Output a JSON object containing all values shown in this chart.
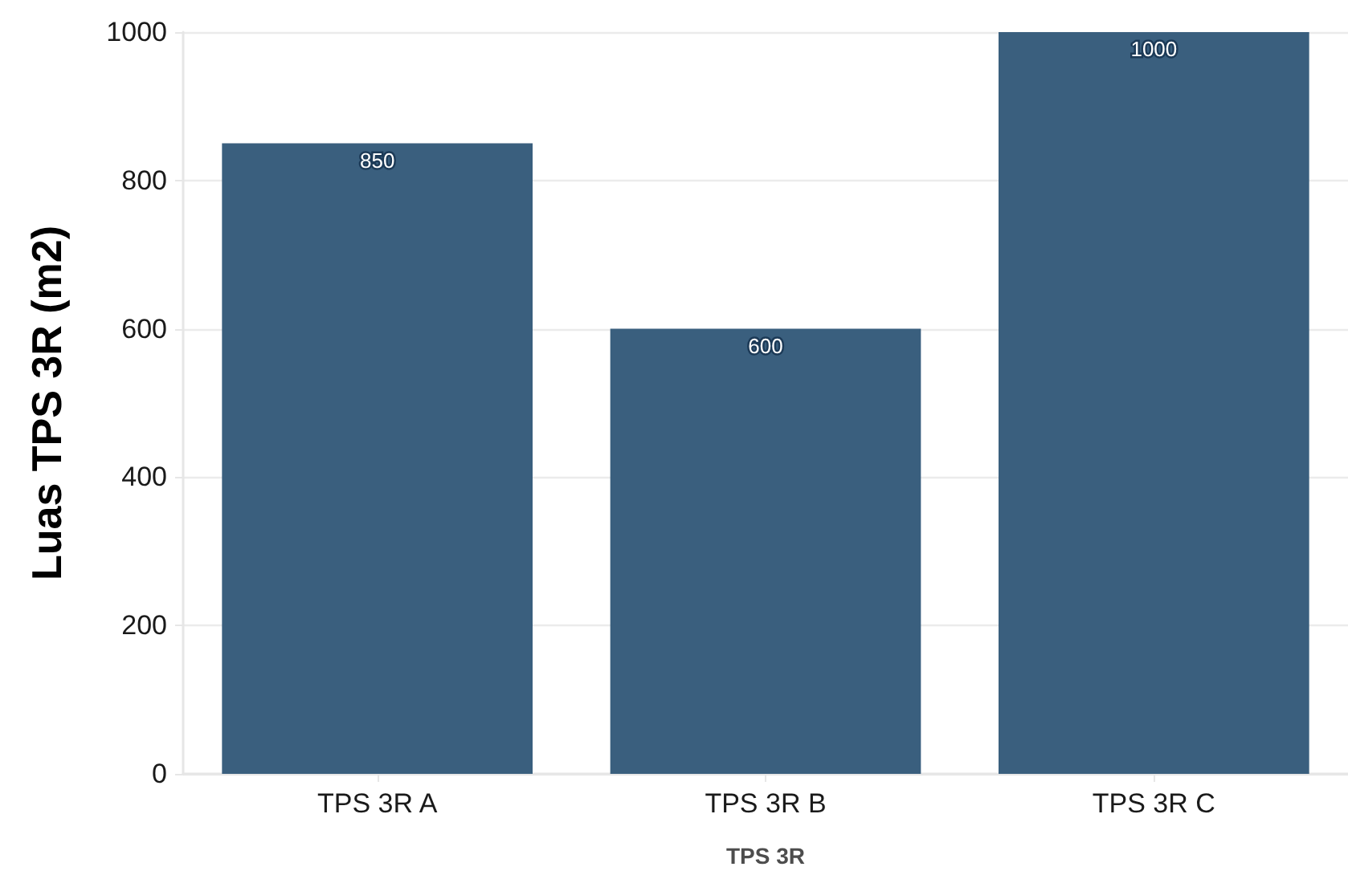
{
  "chart_data": {
    "type": "bar",
    "xlabel": "TPS 3R",
    "ylabel": "Luas TPS 3R (m2)",
    "categories": [
      "TPS 3R A",
      "TPS 3R B",
      "TPS 3R C"
    ],
    "values": [
      850,
      600,
      1000
    ],
    "color": "#3a5f7e",
    "ylim": [
      0,
      1000
    ],
    "yticks": [
      0,
      200,
      400,
      600,
      800,
      1000
    ],
    "grid": "y",
    "data_labels": true
  }
}
